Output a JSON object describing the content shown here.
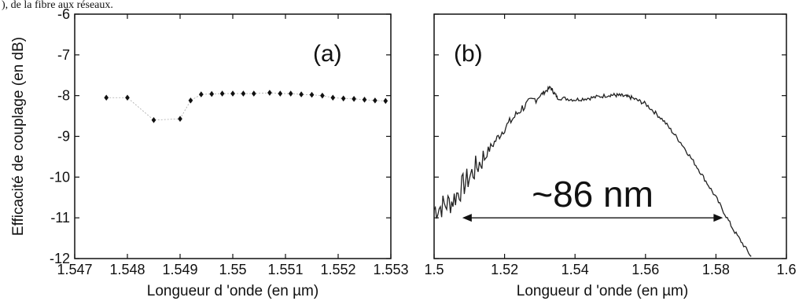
{
  "caption_fragment": "), de la fibre aux réseaux.",
  "chart_data": [
    {
      "type": "scatter",
      "panel_label": "(a)",
      "xlabel": "Longueur d 'onde (en µm)",
      "ylabel": "Efficacité de couplage (en dB)",
      "xlim": [
        1.547,
        1.553
      ],
      "ylim": [
        -12,
        -6
      ],
      "xticks": [
        "1.547",
        "1.548",
        "1.549",
        "1.55",
        "1.551",
        "1.552",
        "1.553"
      ],
      "yticks": [
        "-6",
        "-7",
        "-8",
        "-9",
        "-10",
        "-11",
        "-12"
      ],
      "grid": false,
      "series": [
        {
          "x": [
            1.5476,
            1.548,
            1.5485,
            1.549,
            1.5492,
            1.5494,
            1.5496,
            1.5498,
            1.55,
            1.5502,
            1.5504,
            1.5507,
            1.5509,
            1.5511,
            1.5513,
            1.5515,
            1.5517,
            1.5519,
            1.5521,
            1.5523,
            1.5525,
            1.5527,
            1.5529
          ],
          "y": [
            -8.05,
            -8.05,
            -8.6,
            -8.57,
            -8.12,
            -7.97,
            -7.96,
            -7.95,
            -7.95,
            -7.95,
            -7.95,
            -7.93,
            -7.95,
            -7.95,
            -7.97,
            -7.98,
            -8.0,
            -8.05,
            -8.07,
            -8.08,
            -8.1,
            -8.12,
            -8.13
          ]
        }
      ]
    },
    {
      "type": "line",
      "panel_label": "(b)",
      "xlabel": "Longueur d 'onde (en µm)",
      "xlim": [
        1.5,
        1.6
      ],
      "ylim": [
        -12,
        -6
      ],
      "xticks": [
        "1.5",
        "1.52",
        "1.54",
        "1.56",
        "1.58",
        "1.6"
      ],
      "grid": false,
      "annotation": {
        "text": "~86 nm",
        "x_from": 1.508,
        "x_to": 1.582,
        "y": -11.0
      },
      "series": [
        {
          "x": [
            1.5,
            1.505,
            1.51,
            1.515,
            1.52,
            1.525,
            1.53,
            1.533,
            1.535,
            1.54,
            1.545,
            1.55,
            1.553,
            1.556,
            1.56,
            1.565,
            1.57,
            1.575,
            1.58,
            1.585,
            1.59
          ],
          "y": [
            -10.8,
            -10.6,
            -10.0,
            -9.4,
            -8.8,
            -8.3,
            -8.0,
            -7.8,
            -8.05,
            -8.1,
            -8.05,
            -7.98,
            -8.0,
            -8.05,
            -8.2,
            -8.6,
            -9.15,
            -9.8,
            -10.5,
            -11.3,
            -11.95
          ]
        }
      ]
    }
  ]
}
